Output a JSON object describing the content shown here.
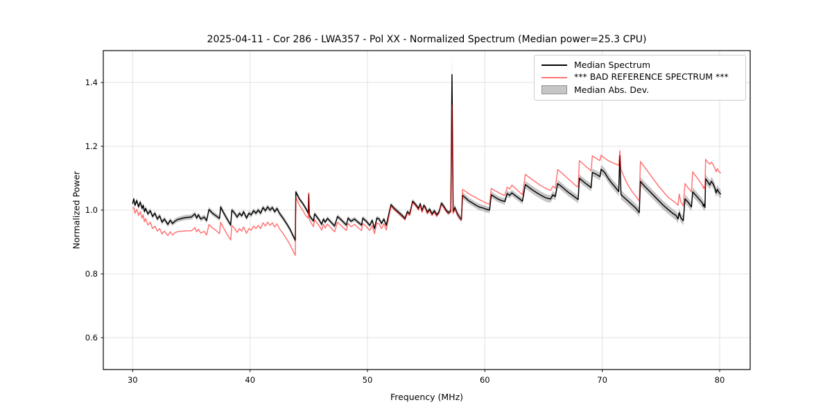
{
  "title": "2025-04-11 - Cor 286 - LWA357 - Pol XX - Normalized Spectrum (Median power=25.3 CPU)",
  "xlabel": "Frequency (MHz)",
  "ylabel": "Normalized Power",
  "legend": {
    "position": "upper right",
    "items": [
      {
        "label": "Median Spectrum",
        "swatch": "line",
        "color_key": "median"
      },
      {
        "label": "*** BAD REFERENCE SPECTRUM ***",
        "swatch": "line",
        "color_key": "bad_reference"
      },
      {
        "label": "Median Abs. Dev.",
        "swatch": "patch",
        "color_key": "mad_band"
      }
    ]
  },
  "colors": {
    "median": "#000000",
    "bad_reference": "rgba(255,0,0,0.55)",
    "mad_band": "rgba(128,128,128,0.45)",
    "grid": "#e0e0e0",
    "frame": "#000000",
    "background": "#ffffff"
  },
  "chart_data": {
    "type": "line",
    "title": "2025-04-11 - Cor 286 - LWA357 - Pol XX - Normalized Spectrum (Median power=25.3 CPU)",
    "xlabel": "Frequency (MHz)",
    "ylabel": "Normalized Power",
    "xlim": [
      27.5,
      82.6
    ],
    "ylim": [
      0.5,
      1.5
    ],
    "xticks": [
      30,
      40,
      50,
      60,
      70,
      80
    ],
    "yticks": [
      0.6,
      0.8,
      1.0,
      1.2,
      1.4
    ],
    "grid": true,
    "legend_position": "upper right",
    "series": [
      {
        "name": "Median Spectrum",
        "type": "line",
        "color": "#000000"
      },
      {
        "name": "*** BAD REFERENCE SPECTRUM ***",
        "type": "line",
        "color": "rgba(255,0,0,0.55)"
      },
      {
        "name": "Median Abs. Dev.",
        "type": "band_halfwidth_around_median",
        "color": "rgba(128,128,128,0.45)"
      }
    ],
    "columns": [
      "frequency_mhz",
      "median_spectrum",
      "bad_reference_spectrum",
      "median_abs_dev"
    ],
    "points": [
      [
        30.0,
        1.02,
        1.005,
        0.008
      ],
      [
        30.1,
        1.035,
        1.008,
        0.008
      ],
      [
        30.2,
        1.015,
        0.99,
        0.008
      ],
      [
        30.35,
        1.03,
        1.002,
        0.008
      ],
      [
        30.5,
        1.01,
        0.983,
        0.008
      ],
      [
        30.65,
        1.025,
        0.995,
        0.008
      ],
      [
        30.8,
        1.005,
        0.975,
        0.008
      ],
      [
        30.9,
        1.015,
        0.985,
        0.008
      ],
      [
        31.0,
        0.995,
        0.963,
        0.008
      ],
      [
        31.1,
        1.005,
        0.973,
        0.008
      ],
      [
        31.3,
        0.988,
        0.953,
        0.008
      ],
      [
        31.5,
        0.998,
        0.962,
        0.008
      ],
      [
        31.7,
        0.98,
        0.942,
        0.008
      ],
      [
        31.9,
        0.99,
        0.95,
        0.008
      ],
      [
        32.1,
        0.972,
        0.934,
        0.008
      ],
      [
        32.3,
        0.982,
        0.942,
        0.008
      ],
      [
        32.5,
        0.962,
        0.925,
        0.008
      ],
      [
        32.7,
        0.972,
        0.934,
        0.008
      ],
      [
        33.0,
        0.955,
        0.92,
        0.008
      ],
      [
        33.2,
        0.968,
        0.932,
        0.008
      ],
      [
        33.4,
        0.958,
        0.922,
        0.008
      ],
      [
        33.6,
        0.965,
        0.929,
        0.008
      ],
      [
        33.8,
        0.97,
        0.932,
        0.008
      ],
      [
        34.0,
        0.972,
        0.933,
        0.008
      ],
      [
        34.3,
        0.975,
        0.934,
        0.008
      ],
      [
        34.6,
        0.977,
        0.935,
        0.008
      ],
      [
        35.0,
        0.978,
        0.935,
        0.008
      ],
      [
        35.3,
        0.988,
        0.945,
        0.008
      ],
      [
        35.45,
        0.975,
        0.932,
        0.008
      ],
      [
        35.6,
        0.985,
        0.94,
        0.008
      ],
      [
        35.8,
        0.972,
        0.928,
        0.008
      ],
      [
        36.1,
        0.978,
        0.933,
        0.008
      ],
      [
        36.3,
        0.967,
        0.922,
        0.008
      ],
      [
        36.5,
        1.002,
        0.955,
        0.008
      ],
      [
        36.8,
        0.99,
        0.944,
        0.008
      ],
      [
        37.1,
        0.982,
        0.936,
        0.008
      ],
      [
        37.4,
        0.974,
        0.926,
        0.008
      ],
      [
        37.5,
        1.01,
        0.962,
        0.008
      ],
      [
        37.7,
        0.995,
        0.947,
        0.008
      ],
      [
        38.0,
        0.975,
        0.927,
        0.008
      ],
      [
        38.35,
        0.953,
        0.906,
        0.008
      ],
      [
        38.45,
        1.0,
        0.952,
        0.008
      ],
      [
        38.7,
        0.99,
        0.942,
        0.008
      ],
      [
        38.9,
        0.978,
        0.93,
        0.008
      ],
      [
        39.1,
        0.99,
        0.942,
        0.008
      ],
      [
        39.3,
        0.982,
        0.934,
        0.008
      ],
      [
        39.45,
        0.995,
        0.947,
        0.008
      ],
      [
        39.7,
        0.975,
        0.927,
        0.008
      ],
      [
        39.9,
        0.99,
        0.942,
        0.008
      ],
      [
        40.1,
        0.985,
        0.937,
        0.008
      ],
      [
        40.3,
        0.998,
        0.95,
        0.008
      ],
      [
        40.5,
        0.99,
        0.942,
        0.008
      ],
      [
        40.7,
        1.0,
        0.952,
        0.008
      ],
      [
        40.9,
        0.99,
        0.942,
        0.008
      ],
      [
        41.1,
        1.008,
        0.96,
        0.008
      ],
      [
        41.3,
        0.998,
        0.95,
        0.008
      ],
      [
        41.5,
        1.01,
        0.962,
        0.008
      ],
      [
        41.7,
        1.0,
        0.952,
        0.008
      ],
      [
        41.9,
        1.008,
        0.96,
        0.008
      ],
      [
        42.1,
        0.995,
        0.947,
        0.008
      ],
      [
        42.3,
        1.005,
        0.957,
        0.008
      ],
      [
        42.5,
        0.99,
        0.942,
        0.008
      ],
      [
        42.8,
        0.975,
        0.927,
        0.008
      ],
      [
        43.1,
        0.958,
        0.91,
        0.008
      ],
      [
        43.4,
        0.94,
        0.892,
        0.008
      ],
      [
        43.7,
        0.917,
        0.869,
        0.008
      ],
      [
        43.85,
        0.905,
        0.858,
        0.008
      ],
      [
        43.9,
        1.057,
        1.04,
        0.008
      ],
      [
        44.2,
        1.035,
        1.015,
        0.007
      ],
      [
        44.5,
        1.02,
        0.998,
        0.007
      ],
      [
        44.8,
        1.002,
        0.98,
        0.007
      ],
      [
        44.95,
        0.99,
        0.975,
        0.007
      ],
      [
        45.0,
        1.05,
        1.054,
        0.007
      ],
      [
        45.05,
        0.984,
        0.97,
        0.007
      ],
      [
        45.2,
        0.975,
        0.96,
        0.007
      ],
      [
        45.4,
        0.966,
        0.948,
        0.007
      ],
      [
        45.5,
        0.988,
        0.97,
        0.007
      ],
      [
        45.7,
        0.978,
        0.96,
        0.007
      ],
      [
        45.9,
        0.968,
        0.95,
        0.007
      ],
      [
        46.1,
        0.955,
        0.937,
        0.007
      ],
      [
        46.25,
        0.972,
        0.955,
        0.007
      ],
      [
        46.4,
        0.962,
        0.944,
        0.007
      ],
      [
        46.6,
        0.974,
        0.956,
        0.007
      ],
      [
        46.9,
        0.962,
        0.944,
        0.007
      ],
      [
        47.2,
        0.95,
        0.932,
        0.007
      ],
      [
        47.45,
        0.98,
        0.962,
        0.007
      ],
      [
        47.8,
        0.968,
        0.95,
        0.007
      ],
      [
        48.2,
        0.953,
        0.936,
        0.007
      ],
      [
        48.35,
        0.975,
        0.958,
        0.007
      ],
      [
        48.6,
        0.965,
        0.948,
        0.007
      ],
      [
        48.9,
        0.972,
        0.955,
        0.007
      ],
      [
        49.2,
        0.962,
        0.945,
        0.007
      ],
      [
        49.5,
        0.953,
        0.936,
        0.007
      ],
      [
        49.6,
        0.975,
        0.958,
        0.007
      ],
      [
        49.9,
        0.965,
        0.948,
        0.007
      ],
      [
        50.2,
        0.952,
        0.936,
        0.007
      ],
      [
        50.4,
        0.968,
        0.952,
        0.007
      ],
      [
        50.6,
        0.942,
        0.926,
        0.007
      ],
      [
        50.8,
        0.975,
        0.96,
        0.007
      ],
      [
        51.0,
        0.972,
        0.956,
        0.007
      ],
      [
        51.2,
        0.958,
        0.942,
        0.007
      ],
      [
        51.4,
        0.972,
        0.957,
        0.007
      ],
      [
        51.6,
        0.952,
        0.937,
        0.007
      ],
      [
        52.0,
        1.017,
        1.012,
        0.007
      ],
      [
        52.3,
        1.005,
        1.0,
        0.007
      ],
      [
        52.6,
        0.995,
        0.99,
        0.007
      ],
      [
        52.9,
        0.985,
        0.98,
        0.007
      ],
      [
        53.2,
        0.974,
        0.969,
        0.007
      ],
      [
        53.4,
        0.995,
        0.99,
        0.007
      ],
      [
        53.6,
        0.988,
        0.983,
        0.007
      ],
      [
        53.85,
        1.028,
        1.023,
        0.007
      ],
      [
        54.1,
        1.018,
        1.013,
        0.007
      ],
      [
        54.35,
        1.005,
        1.0,
        0.007
      ],
      [
        54.5,
        1.02,
        1.015,
        0.007
      ],
      [
        54.65,
        0.998,
        0.993,
        0.007
      ],
      [
        54.8,
        1.015,
        1.01,
        0.007
      ],
      [
        54.95,
        1.008,
        1.003,
        0.007
      ],
      [
        55.1,
        0.993,
        0.988,
        0.007
      ],
      [
        55.3,
        1.003,
        0.998,
        0.007
      ],
      [
        55.5,
        0.988,
        0.983,
        0.007
      ],
      [
        55.7,
        0.998,
        0.993,
        0.007
      ],
      [
        55.9,
        0.985,
        0.98,
        0.007
      ],
      [
        56.1,
        0.995,
        0.99,
        0.007
      ],
      [
        56.3,
        1.022,
        1.017,
        0.007
      ],
      [
        56.5,
        1.012,
        1.007,
        0.007
      ],
      [
        56.7,
        1.0,
        0.995,
        0.007
      ],
      [
        56.9,
        0.992,
        0.987,
        0.007
      ],
      [
        57.1,
        0.998,
        0.994,
        0.007
      ],
      [
        57.2,
        1.425,
        1.33,
        0.065
      ],
      [
        57.3,
        0.995,
        0.99,
        0.01
      ],
      [
        57.45,
        1.008,
        1.004,
        0.01
      ],
      [
        57.66,
        0.988,
        0.985,
        0.01
      ],
      [
        57.9,
        0.975,
        0.972,
        0.01
      ],
      [
        58.0,
        0.971,
        0.968,
        0.01
      ],
      [
        58.1,
        1.046,
        1.065,
        0.01
      ],
      [
        58.3,
        1.04,
        1.06,
        0.01
      ],
      [
        58.6,
        1.03,
        1.052,
        0.01
      ],
      [
        58.9,
        1.023,
        1.045,
        0.01
      ],
      [
        59.2,
        1.016,
        1.04,
        0.01
      ],
      [
        59.5,
        1.01,
        1.033,
        0.01
      ],
      [
        59.8,
        1.007,
        1.028,
        0.01
      ],
      [
        60.1,
        1.003,
        1.022,
        0.01
      ],
      [
        60.4,
        1.0,
        1.018,
        0.01
      ],
      [
        60.55,
        1.048,
        1.068,
        0.01
      ],
      [
        60.8,
        1.042,
        1.062,
        0.01
      ],
      [
        61.1,
        1.035,
        1.056,
        0.01
      ],
      [
        61.4,
        1.03,
        1.05,
        0.01
      ],
      [
        61.7,
        1.027,
        1.046,
        0.01
      ],
      [
        61.9,
        1.052,
        1.072,
        0.01
      ],
      [
        62.1,
        1.046,
        1.066,
        0.01
      ],
      [
        62.3,
        1.054,
        1.078,
        0.01
      ],
      [
        62.6,
        1.045,
        1.068,
        0.01
      ],
      [
        62.9,
        1.037,
        1.058,
        0.01
      ],
      [
        63.2,
        1.028,
        1.048,
        0.01
      ],
      [
        63.45,
        1.08,
        1.112,
        0.012
      ],
      [
        63.8,
        1.07,
        1.102,
        0.012
      ],
      [
        64.1,
        1.062,
        1.094,
        0.012
      ],
      [
        64.4,
        1.055,
        1.086,
        0.012
      ],
      [
        64.7,
        1.048,
        1.078,
        0.012
      ],
      [
        65.0,
        1.042,
        1.072,
        0.012
      ],
      [
        65.3,
        1.037,
        1.066,
        0.012
      ],
      [
        65.6,
        1.035,
        1.062,
        0.012
      ],
      [
        65.8,
        1.048,
        1.075,
        0.012
      ],
      [
        66.0,
        1.042,
        1.068,
        0.012
      ],
      [
        66.2,
        1.083,
        1.127,
        0.012
      ],
      [
        66.5,
        1.075,
        1.118,
        0.012
      ],
      [
        66.8,
        1.065,
        1.108,
        0.012
      ],
      [
        67.1,
        1.056,
        1.098,
        0.012
      ],
      [
        67.4,
        1.048,
        1.088,
        0.012
      ],
      [
        67.7,
        1.04,
        1.078,
        0.012
      ],
      [
        67.95,
        1.033,
        1.072,
        0.012
      ],
      [
        68.05,
        1.1,
        1.155,
        0.012
      ],
      [
        68.3,
        1.092,
        1.147,
        0.012
      ],
      [
        68.6,
        1.083,
        1.137,
        0.012
      ],
      [
        68.9,
        1.075,
        1.128,
        0.012
      ],
      [
        69.05,
        1.07,
        1.122,
        0.012
      ],
      [
        69.15,
        1.118,
        1.17,
        0.012
      ],
      [
        69.5,
        1.112,
        1.162,
        0.012
      ],
      [
        69.8,
        1.105,
        1.155,
        0.012
      ],
      [
        69.9,
        1.128,
        1.172,
        0.014
      ],
      [
        70.2,
        1.118,
        1.163,
        0.014
      ],
      [
        70.5,
        1.1,
        1.155,
        0.014
      ],
      [
        70.8,
        1.085,
        1.15,
        0.014
      ],
      [
        71.1,
        1.072,
        1.145,
        0.014
      ],
      [
        71.4,
        1.058,
        1.14,
        0.014
      ],
      [
        71.5,
        1.17,
        1.185,
        0.035
      ],
      [
        71.6,
        1.048,
        1.128,
        0.014
      ],
      [
        71.9,
        1.038,
        1.1,
        0.014
      ],
      [
        72.2,
        1.028,
        1.078,
        0.014
      ],
      [
        72.5,
        1.018,
        1.06,
        0.014
      ],
      [
        72.8,
        1.008,
        1.046,
        0.014
      ],
      [
        73.0,
        1.0,
        1.036,
        0.014
      ],
      [
        73.15,
        0.992,
        1.028,
        0.014
      ],
      [
        73.25,
        1.09,
        1.152,
        0.014
      ],
      [
        73.6,
        1.075,
        1.135,
        0.014
      ],
      [
        74.0,
        1.06,
        1.115,
        0.014
      ],
      [
        74.4,
        1.045,
        1.095,
        0.014
      ],
      [
        74.8,
        1.03,
        1.075,
        0.014
      ],
      [
        75.2,
        1.015,
        1.058,
        0.014
      ],
      [
        75.6,
        1.002,
        1.04,
        0.014
      ],
      [
        76.0,
        0.99,
        1.03,
        0.014
      ],
      [
        76.28,
        0.983,
        1.022,
        0.014
      ],
      [
        76.45,
        0.972,
        1.015,
        0.014
      ],
      [
        76.55,
        0.992,
        1.05,
        0.014
      ],
      [
        76.7,
        0.975,
        1.025,
        0.014
      ],
      [
        76.9,
        0.967,
        1.013,
        0.014
      ],
      [
        77.05,
        1.035,
        1.083,
        0.014
      ],
      [
        77.3,
        1.025,
        1.07,
        0.014
      ],
      [
        77.6,
        1.01,
        1.057,
        0.014
      ],
      [
        77.7,
        1.057,
        1.12,
        0.014
      ],
      [
        78.0,
        1.045,
        1.105,
        0.014
      ],
      [
        78.3,
        1.032,
        1.09,
        0.014
      ],
      [
        78.55,
        1.021,
        1.076,
        0.014
      ],
      [
        78.62,
        1.012,
        1.068,
        0.014
      ],
      [
        78.68,
        1.018,
        1.074,
        0.014
      ],
      [
        78.75,
        1.008,
        1.065,
        0.014
      ],
      [
        78.8,
        1.098,
        1.159,
        0.014
      ],
      [
        79.0,
        1.088,
        1.15,
        0.014
      ],
      [
        79.15,
        1.079,
        1.144,
        0.014
      ],
      [
        79.3,
        1.09,
        1.15,
        0.014
      ],
      [
        79.45,
        1.082,
        1.142,
        0.014
      ],
      [
        79.6,
        1.068,
        1.13,
        0.014
      ],
      [
        79.7,
        1.054,
        1.12,
        0.014
      ],
      [
        79.8,
        1.065,
        1.13,
        0.014
      ],
      [
        79.95,
        1.055,
        1.12,
        0.014
      ],
      [
        80.1,
        1.05,
        1.116,
        0.014
      ]
    ]
  }
}
